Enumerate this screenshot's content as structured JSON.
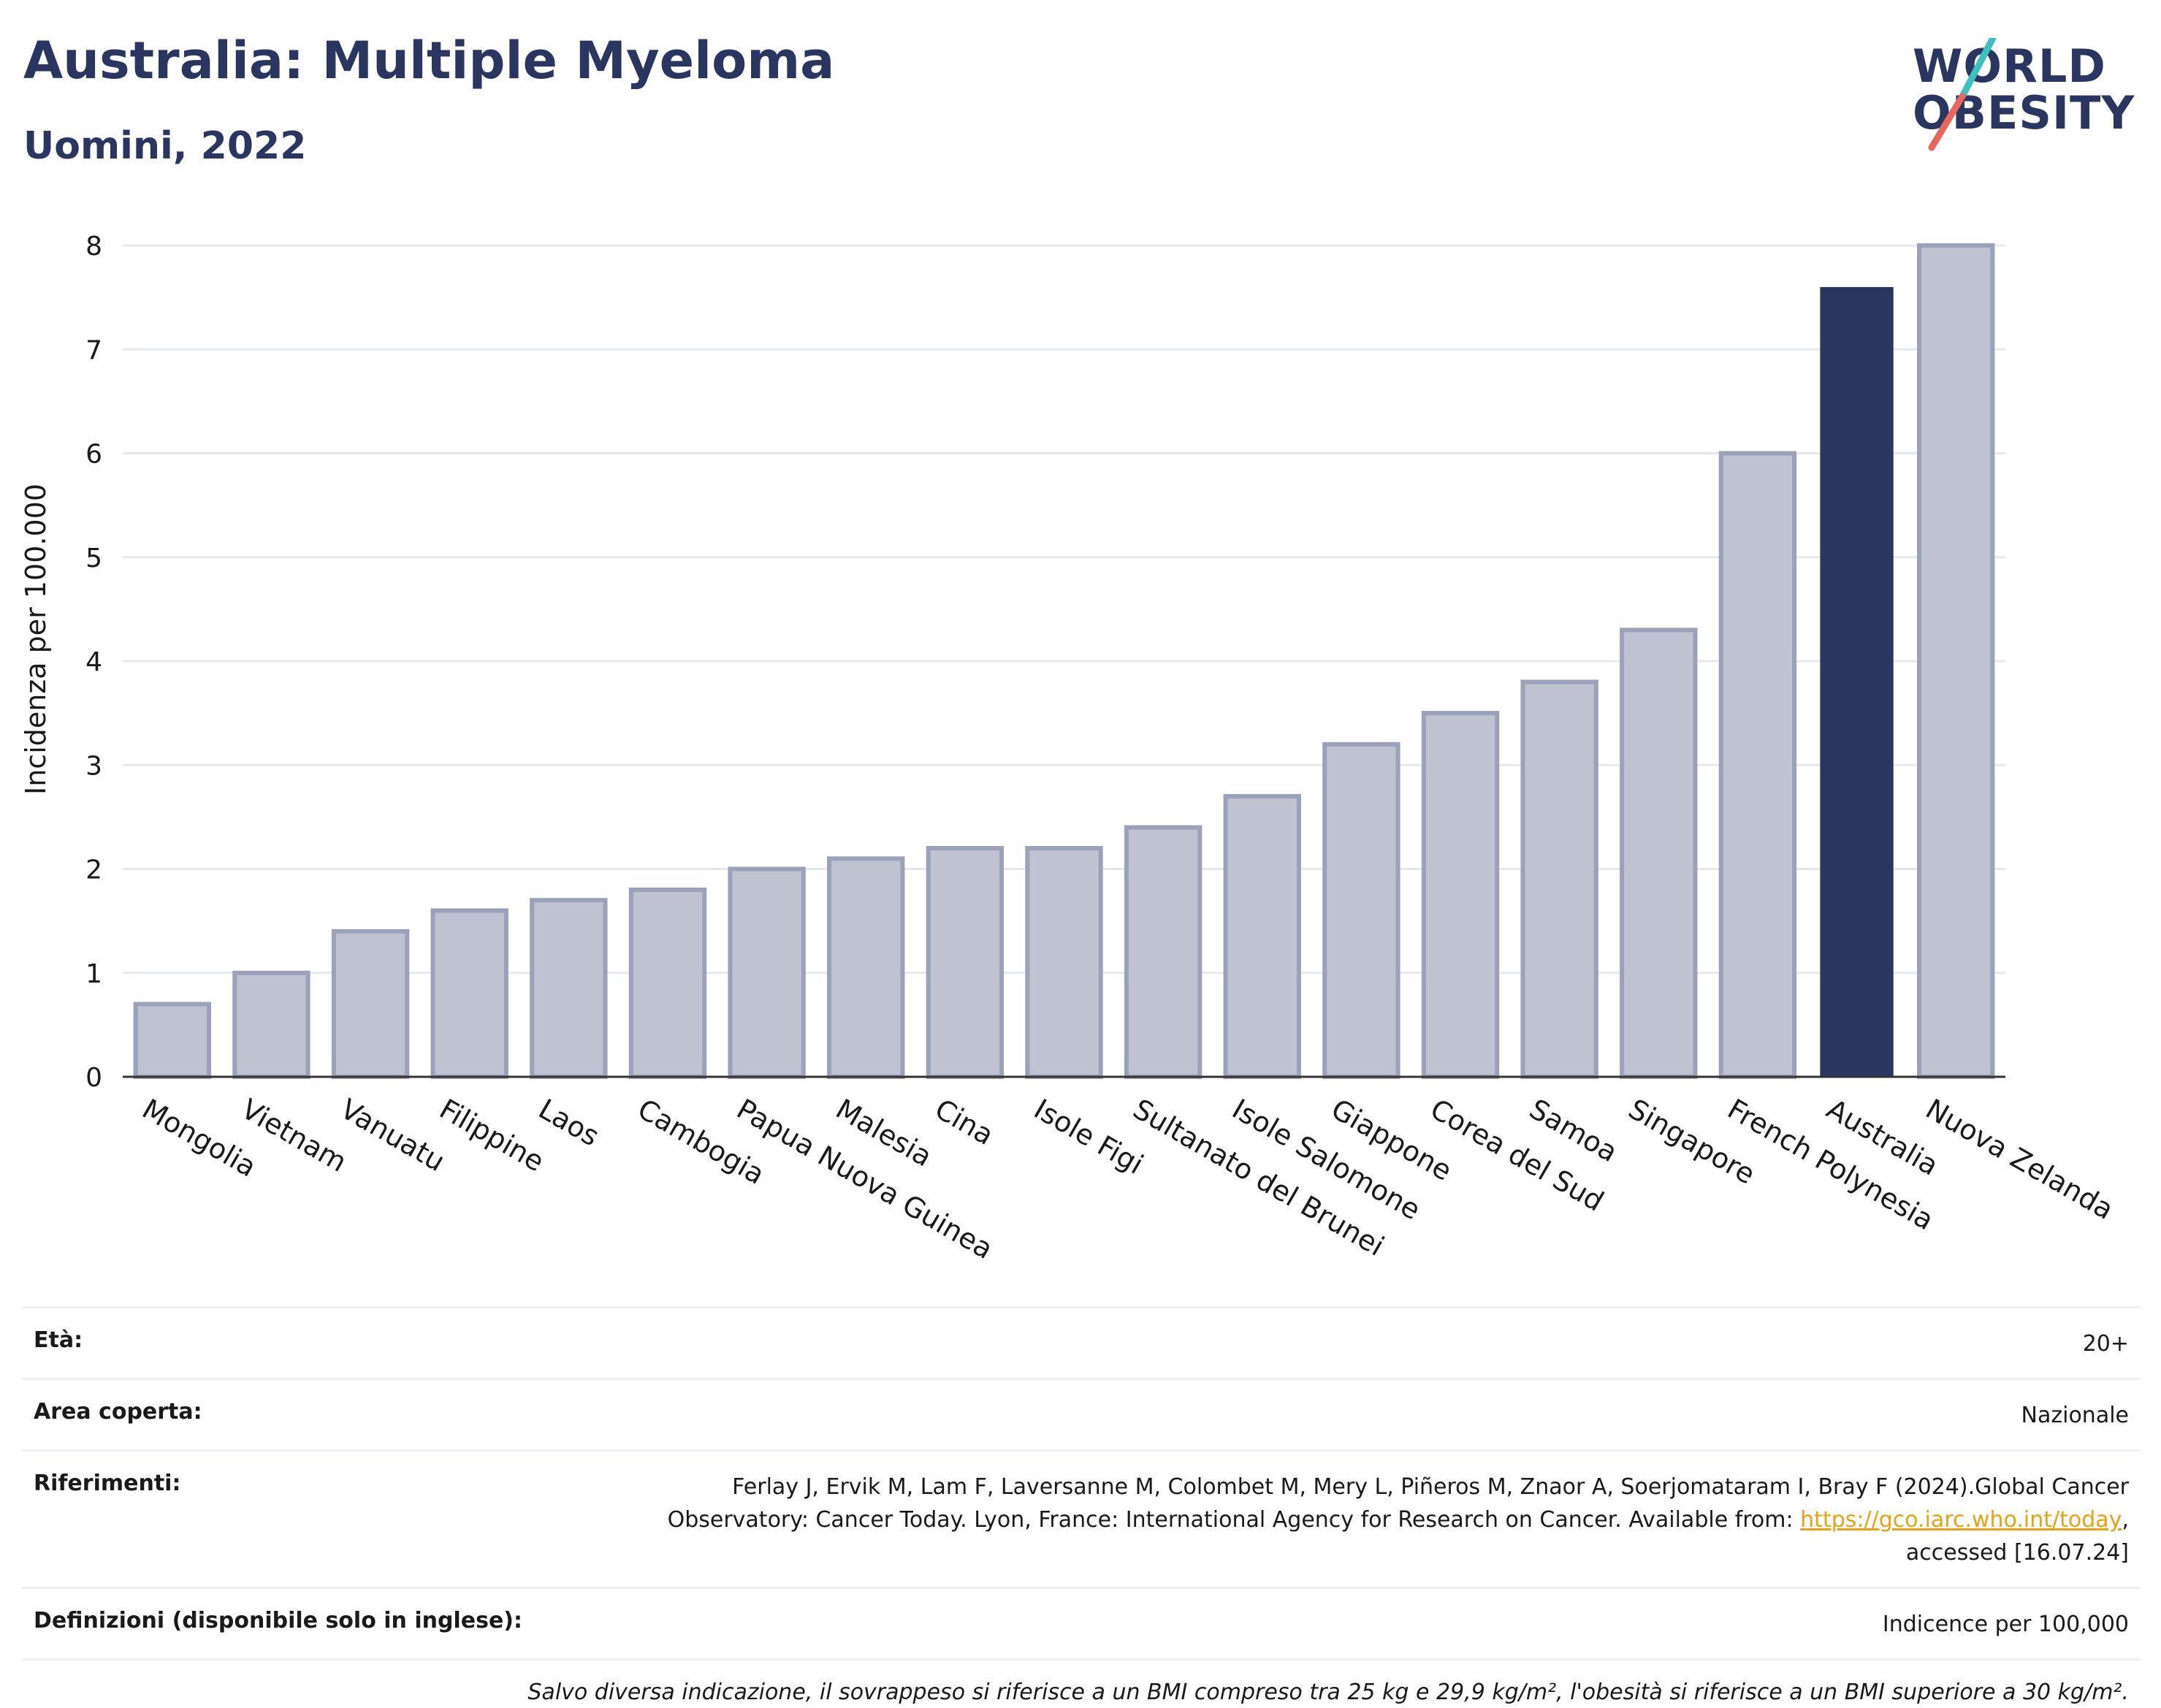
{
  "header": {
    "title": "Australia: Multiple Myeloma",
    "subtitle": "Uomini, 2022"
  },
  "logo": {
    "line1": "WORLD",
    "line2": "OBESITY",
    "colors": {
      "text": "#2a3560",
      "slash_top": "#3cc0c0",
      "slash_bottom": "#e8665a"
    }
  },
  "chart_data": {
    "type": "bar",
    "title": "",
    "xlabel": "",
    "ylabel": "Incidenza per 100.000",
    "ylim": [
      0,
      8
    ],
    "yticks": [
      0,
      1,
      2,
      3,
      4,
      5,
      6,
      7,
      8
    ],
    "grid": true,
    "legend": "none",
    "categories": [
      "Mongolia",
      "Vietnam",
      "Vanuatu",
      "Filippine",
      "Laos",
      "Cambogia",
      "Papua Nuova Guinea",
      "Malesia",
      "Cina",
      "Isole Figi",
      "Sultanato del Brunei",
      "Isole Salomone",
      "Giappone",
      "Corea del Sud",
      "Samoa",
      "Singapore",
      "French Polynesia",
      "Australia",
      "Nuova Zelanda"
    ],
    "values": [
      0.7,
      1.0,
      1.4,
      1.6,
      1.7,
      1.8,
      2.0,
      2.1,
      2.2,
      2.2,
      2.4,
      2.7,
      3.2,
      3.5,
      3.8,
      4.3,
      6.0,
      7.6,
      8.0
    ],
    "highlight": "Australia",
    "colors": {
      "bar": "#bfc3d1",
      "bar_border": "#9aa1b8",
      "highlight": "#2a3560",
      "grid": "#e6e8ef",
      "axis": "#333333"
    }
  },
  "info": {
    "age_label": "Età:",
    "age_value": "20+",
    "area_label": "Area coperta:",
    "area_value": "Nazionale",
    "refs_label": "Riferimenti:",
    "refs_line1": "Ferlay J, Ervik M, Lam F, Laversanne M, Colombet M, Mery L, Piñeros M, Znaor A, Soerjomataram I, Bray F (2024).Global Cancer",
    "refs_line2_pre": "Observatory: Cancer Today. Lyon, France: International Agency for Research on Cancer. Available from: ",
    "refs_link": "https://gco.iarc.who.int/today",
    "refs_line2_post": ",",
    "refs_line3": "accessed [16.07.24]",
    "defs_label": "Definizioni (disponibile solo in inglese):",
    "defs_value": "Indicence per 100,000",
    "note": "Salvo diversa indicazione, il sovrappeso si riferisce a un BMI compreso tra 25 kg e 29,9 kg/m², l'obesità si riferisce a un BMI superiore a 30 kg/m²."
  }
}
